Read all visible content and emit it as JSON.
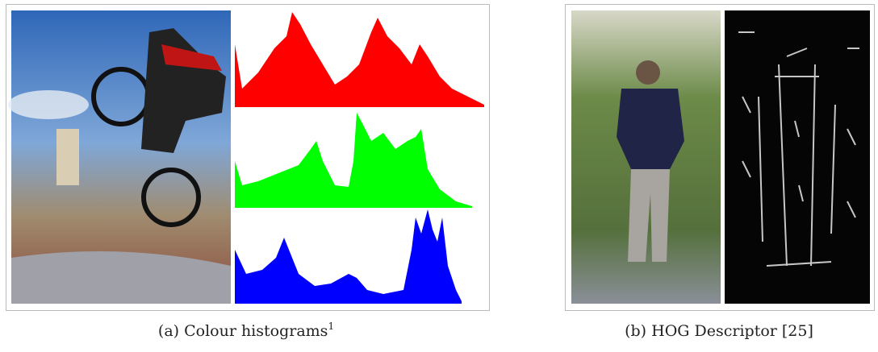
{
  "figure": {
    "subfigures": [
      {
        "caption": "(a) Colour histograms",
        "footnote": "1"
      },
      {
        "caption": "(b) HOG Descriptor [25]"
      }
    ]
  }
}
